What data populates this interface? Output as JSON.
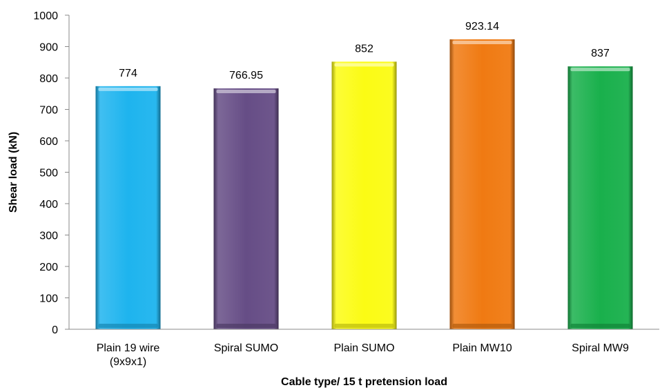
{
  "chart_data": {
    "type": "bar",
    "title": "",
    "xlabel": "Cable type/ 15 t pretension load",
    "ylabel": "Shear load (kN)",
    "ylim": [
      0,
      1000
    ],
    "ytick_step": 100,
    "grid": false,
    "categories": [
      [
        "Plain 19 wire",
        "(9x9x1)"
      ],
      [
        "Spiral SUMO"
      ],
      [
        "Plain SUMO"
      ],
      [
        "Plain MW10"
      ],
      [
        "Spiral MW9"
      ]
    ],
    "values": [
      774,
      766.95,
      852,
      923.14,
      837
    ],
    "value_labels": [
      "774",
      "766.95",
      "852",
      "923.14",
      "837"
    ],
    "colors": [
      "#1eb4ee",
      "#664d86",
      "#fbfb14",
      "#f07a12",
      "#19b04c"
    ]
  }
}
